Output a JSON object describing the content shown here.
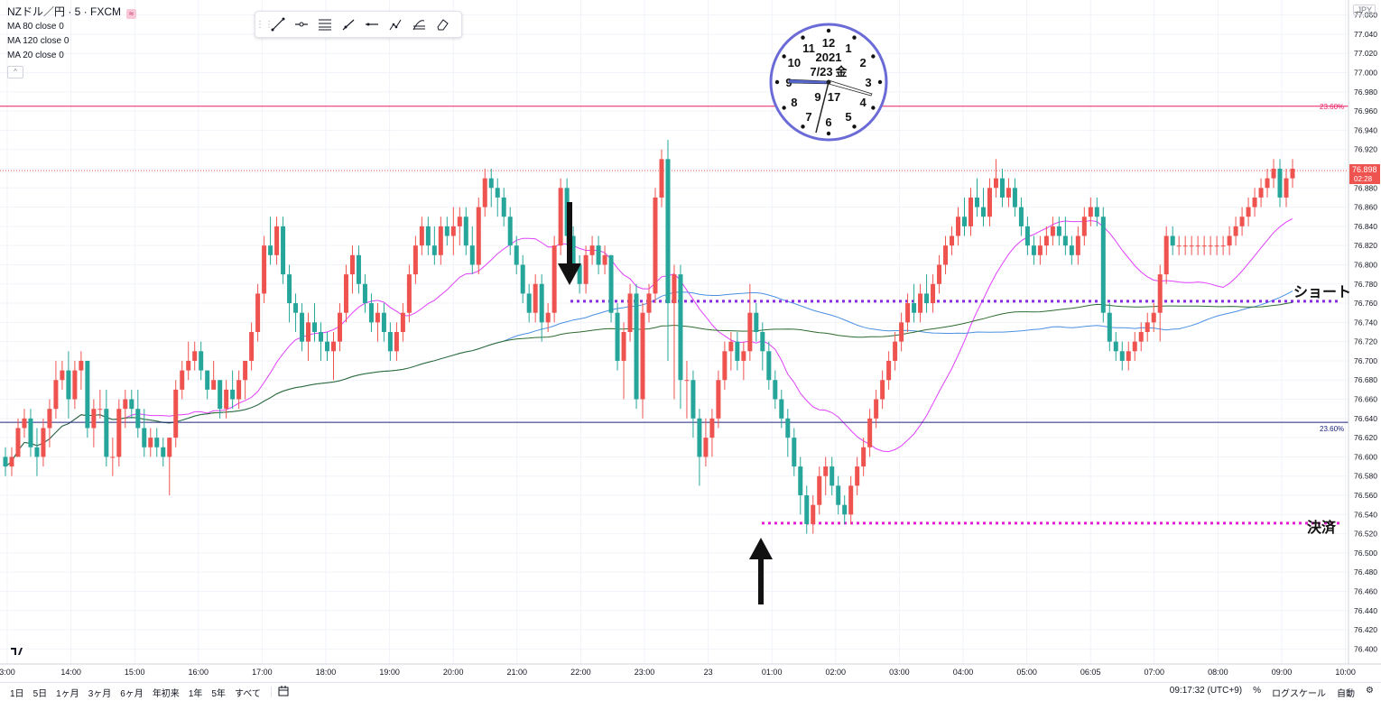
{
  "legend": {
    "title": "NZドル／円 · 5 · FXCM",
    "ma80": "MA 80 close 0",
    "ma120": "MA 120 close 0",
    "ma20": "MA 20 close 0",
    "chip": "≈"
  },
  "currency_button": "JPY",
  "price_badge": {
    "price": "76.898",
    "countdown": "02:28"
  },
  "fib_label": "23.60%",
  "annotations": {
    "short": "ショート",
    "close": "決済"
  },
  "clock": {
    "year": "2021",
    "date": "7/23",
    "weekday": "金",
    "hour_label": "9",
    "minute_label": "17",
    "numbers": [
      "12",
      "1",
      "2",
      "3",
      "4",
      "5",
      "6",
      "7",
      "8",
      "9",
      "10",
      "11"
    ]
  },
  "bottombar": {
    "ranges": [
      "1日",
      "5日",
      "1ヶ月",
      "3ヶ月",
      "6ヶ月",
      "年初来",
      "1年",
      "5年",
      "すべて"
    ],
    "time": "09:17:32 (UTC+9)",
    "percent": "%",
    "log": "ログスケール",
    "auto": "自動"
  },
  "colors": {
    "up": "#ef5350",
    "down": "#26a69a",
    "ma20": "#e040fb",
    "ma80": "#4a90e2",
    "ma120": "#2e6b2e",
    "fib_pink": "#e91e63",
    "fib_navy": "#1a237e",
    "dotted_purple": "#8a2be2",
    "dotted_magenta": "#e020d0",
    "clock_ring": "#6b6bd8"
  },
  "chart_data": {
    "type": "candlestick",
    "y_ticks": [
      "77.060",
      "77.040",
      "77.020",
      "77.000",
      "76.980",
      "76.960",
      "76.940",
      "76.920",
      "76.900",
      "76.880",
      "76.860",
      "76.840",
      "76.820",
      "76.800",
      "76.780",
      "76.760",
      "76.740",
      "76.720",
      "76.700",
      "76.680",
      "76.660",
      "76.640",
      "76.620",
      "76.600",
      "76.580",
      "76.560",
      "76.540",
      "76.520",
      "76.500",
      "76.480",
      "76.460",
      "76.440",
      "76.420",
      "76.400"
    ],
    "x_ticks": [
      "3:00",
      "14:00",
      "15:00",
      "16:00",
      "17:00",
      "18:00",
      "19:00",
      "20:00",
      "21:00",
      "22:00",
      "23:00",
      "23",
      "01:00",
      "02:00",
      "03:00",
      "04:00",
      "05:00",
      "06:05",
      "07:00",
      "08:00",
      "09:00",
      "10:00"
    ],
    "fib_levels": [
      76.965,
      76.636
    ],
    "short_level": 76.762,
    "close_level": 76.531,
    "current_price": 76.898,
    "candles": [
      [
        76.6,
        76.61,
        76.58,
        76.59
      ],
      [
        76.59,
        76.61,
        76.58,
        76.6
      ],
      [
        76.6,
        76.64,
        76.6,
        76.63
      ],
      [
        76.63,
        76.65,
        76.62,
        76.64
      ],
      [
        76.64,
        76.65,
        76.6,
        76.61
      ],
      [
        76.61,
        76.63,
        76.58,
        76.6
      ],
      [
        76.6,
        76.64,
        76.59,
        76.63
      ],
      [
        76.63,
        76.66,
        76.61,
        76.65
      ],
      [
        76.65,
        76.7,
        76.64,
        76.68
      ],
      [
        76.68,
        76.7,
        76.67,
        76.69
      ],
      [
        76.69,
        76.71,
        76.64,
        76.66
      ],
      [
        76.66,
        76.7,
        76.65,
        76.69
      ],
      [
        76.69,
        76.71,
        76.67,
        76.7
      ],
      [
        76.7,
        76.7,
        76.62,
        76.63
      ],
      [
        76.63,
        76.66,
        76.61,
        76.65
      ],
      [
        76.65,
        76.67,
        76.64,
        76.65
      ],
      [
        76.65,
        76.67,
        76.59,
        76.6
      ],
      [
        76.6,
        76.62,
        76.58,
        76.6
      ],
      [
        76.6,
        76.66,
        76.59,
        76.65
      ],
      [
        76.65,
        76.67,
        76.63,
        76.66
      ],
      [
        76.66,
        76.67,
        76.64,
        76.65
      ],
      [
        76.65,
        76.67,
        76.62,
        76.63
      ],
      [
        76.63,
        76.65,
        76.6,
        76.61
      ],
      [
        76.61,
        76.63,
        76.6,
        76.62
      ],
      [
        76.62,
        76.63,
        76.6,
        76.61
      ],
      [
        76.61,
        76.62,
        76.59,
        76.6
      ],
      [
        76.6,
        76.62,
        76.56,
        76.62
      ],
      [
        76.62,
        76.68,
        76.61,
        76.67
      ],
      [
        76.67,
        76.7,
        76.66,
        76.69
      ],
      [
        76.69,
        76.72,
        76.68,
        76.7
      ],
      [
        76.7,
        76.72,
        76.69,
        76.71
      ],
      [
        76.71,
        76.72,
        76.68,
        76.69
      ],
      [
        76.69,
        76.69,
        76.66,
        76.67
      ],
      [
        76.67,
        76.7,
        76.67,
        76.68
      ],
      [
        76.68,
        76.68,
        76.64,
        76.65
      ],
      [
        76.65,
        76.68,
        76.64,
        76.67
      ],
      [
        76.67,
        76.69,
        76.65,
        76.66
      ],
      [
        76.66,
        76.69,
        76.65,
        76.68
      ],
      [
        76.68,
        76.7,
        76.66,
        76.7
      ],
      [
        76.7,
        76.74,
        76.69,
        76.73
      ],
      [
        76.73,
        76.78,
        76.72,
        76.77
      ],
      [
        76.77,
        76.83,
        76.76,
        76.82
      ],
      [
        76.82,
        76.85,
        76.8,
        76.81
      ],
      [
        76.81,
        76.85,
        76.8,
        76.84
      ],
      [
        76.84,
        76.85,
        76.78,
        76.79
      ],
      [
        76.79,
        76.8,
        76.74,
        76.76
      ],
      [
        76.76,
        76.77,
        76.73,
        76.75
      ],
      [
        76.75,
        76.76,
        76.71,
        76.72
      ],
      [
        76.72,
        76.75,
        76.7,
        76.74
      ],
      [
        76.74,
        76.76,
        76.72,
        76.73
      ],
      [
        76.73,
        76.74,
        76.7,
        76.72
      ],
      [
        76.72,
        76.73,
        76.7,
        76.71
      ],
      [
        76.71,
        76.73,
        76.68,
        76.72
      ],
      [
        76.72,
        76.76,
        76.71,
        76.75
      ],
      [
        76.75,
        76.8,
        76.74,
        76.79
      ],
      [
        76.79,
        76.82,
        76.77,
        76.81
      ],
      [
        76.81,
        76.82,
        76.77,
        76.78
      ],
      [
        76.78,
        76.79,
        76.75,
        76.76
      ],
      [
        76.76,
        76.77,
        76.73,
        76.74
      ],
      [
        76.74,
        76.76,
        76.72,
        76.75
      ],
      [
        76.75,
        76.76,
        76.72,
        76.73
      ],
      [
        76.73,
        76.74,
        76.7,
        76.71
      ],
      [
        76.71,
        76.74,
        76.7,
        76.73
      ],
      [
        76.73,
        76.76,
        76.72,
        76.75
      ],
      [
        76.75,
        76.8,
        76.74,
        76.79
      ],
      [
        76.79,
        76.83,
        76.78,
        76.82
      ],
      [
        76.82,
        76.85,
        76.81,
        76.84
      ],
      [
        76.84,
        76.85,
        76.81,
        76.82
      ],
      [
        76.82,
        76.84,
        76.8,
        76.81
      ],
      [
        76.81,
        76.85,
        76.8,
        76.84
      ],
      [
        76.84,
        76.85,
        76.82,
        76.83
      ],
      [
        76.83,
        76.86,
        76.81,
        76.84
      ],
      [
        76.84,
        76.86,
        76.82,
        76.85
      ],
      [
        76.85,
        76.86,
        76.81,
        76.82
      ],
      [
        76.82,
        76.84,
        76.79,
        76.8
      ],
      [
        76.8,
        76.87,
        76.79,
        76.86
      ],
      [
        76.86,
        76.9,
        76.85,
        76.89
      ],
      [
        76.89,
        76.9,
        76.86,
        76.88
      ],
      [
        76.88,
        76.89,
        76.85,
        76.87
      ],
      [
        76.87,
        76.88,
        76.84,
        76.85
      ],
      [
        76.85,
        76.86,
        76.81,
        76.82
      ],
      [
        76.82,
        76.83,
        76.79,
        76.8
      ],
      [
        76.8,
        76.81,
        76.76,
        76.77
      ],
      [
        76.77,
        76.78,
        76.74,
        76.75
      ],
      [
        76.75,
        76.79,
        76.74,
        76.78
      ],
      [
        76.78,
        76.79,
        76.72,
        76.74
      ],
      [
        76.74,
        76.76,
        76.73,
        76.75
      ],
      [
        76.75,
        76.83,
        76.74,
        76.82
      ],
      [
        76.82,
        76.89,
        76.81,
        76.88
      ],
      [
        76.88,
        76.89,
        76.82,
        76.83
      ],
      [
        76.83,
        76.84,
        76.79,
        76.8
      ],
      [
        76.8,
        76.81,
        76.77,
        76.78
      ],
      [
        76.78,
        76.82,
        76.77,
        76.81
      ],
      [
        76.81,
        76.83,
        76.8,
        76.82
      ],
      [
        76.82,
        76.83,
        76.79,
        76.8
      ],
      [
        76.8,
        76.82,
        76.79,
        76.81
      ],
      [
        76.81,
        76.81,
        76.74,
        76.75
      ],
      [
        76.75,
        76.76,
        76.69,
        76.7
      ],
      [
        76.7,
        76.74,
        76.66,
        76.73
      ],
      [
        76.73,
        76.78,
        76.72,
        76.77
      ],
      [
        76.77,
        76.78,
        76.65,
        76.66
      ],
      [
        76.66,
        76.76,
        76.64,
        76.75
      ],
      [
        76.75,
        76.78,
        76.74,
        76.77
      ],
      [
        76.77,
        76.88,
        76.76,
        76.87
      ],
      [
        76.87,
        76.92,
        76.86,
        76.91
      ],
      [
        76.91,
        76.93,
        76.7,
        76.76
      ],
      [
        76.76,
        76.8,
        76.66,
        76.79
      ],
      [
        76.79,
        76.8,
        76.65,
        76.68
      ],
      [
        76.68,
        76.7,
        76.64,
        76.68
      ],
      [
        76.68,
        76.69,
        76.62,
        76.64
      ],
      [
        76.64,
        76.65,
        76.57,
        76.6
      ],
      [
        76.6,
        76.64,
        76.59,
        76.62
      ],
      [
        76.62,
        76.65,
        76.6,
        76.64
      ],
      [
        76.64,
        76.69,
        76.63,
        76.68
      ],
      [
        76.68,
        76.72,
        76.67,
        76.71
      ],
      [
        76.71,
        76.73,
        76.69,
        76.72
      ],
      [
        76.72,
        76.73,
        76.69,
        76.7
      ],
      [
        76.7,
        76.72,
        76.68,
        76.71
      ],
      [
        76.71,
        76.78,
        76.7,
        76.75
      ],
      [
        76.75,
        76.76,
        76.72,
        76.73
      ],
      [
        76.73,
        76.74,
        76.69,
        76.71
      ],
      [
        76.71,
        76.72,
        76.67,
        76.68
      ],
      [
        76.68,
        76.69,
        76.65,
        76.66
      ],
      [
        76.66,
        76.67,
        76.63,
        76.64
      ],
      [
        76.64,
        76.65,
        76.6,
        76.62
      ],
      [
        76.62,
        76.63,
        76.58,
        76.59
      ],
      [
        76.59,
        76.6,
        76.54,
        76.56
      ],
      [
        76.56,
        76.57,
        76.52,
        76.53
      ],
      [
        76.53,
        76.56,
        76.52,
        76.55
      ],
      [
        76.55,
        76.59,
        76.54,
        76.58
      ],
      [
        76.58,
        76.6,
        76.56,
        76.59
      ],
      [
        76.59,
        76.6,
        76.56,
        76.57
      ],
      [
        76.57,
        76.58,
        76.54,
        76.55
      ],
      [
        76.55,
        76.56,
        76.53,
        76.54
      ],
      [
        76.54,
        76.58,
        76.53,
        76.57
      ],
      [
        76.57,
        76.6,
        76.56,
        76.59
      ],
      [
        76.59,
        76.62,
        76.58,
        76.61
      ],
      [
        76.61,
        76.65,
        76.6,
        76.64
      ],
      [
        76.64,
        76.67,
        76.63,
        76.66
      ],
      [
        76.66,
        76.69,
        76.65,
        76.68
      ],
      [
        76.68,
        76.71,
        76.67,
        76.7
      ],
      [
        76.7,
        76.73,
        76.69,
        76.72
      ],
      [
        76.72,
        76.75,
        76.71,
        76.74
      ],
      [
        76.74,
        76.77,
        76.73,
        76.76
      ],
      [
        76.76,
        76.78,
        76.74,
        76.75
      ],
      [
        76.75,
        76.78,
        76.74,
        76.77
      ],
      [
        76.77,
        76.79,
        76.75,
        76.76
      ],
      [
        76.76,
        76.79,
        76.75,
        76.78
      ],
      [
        76.78,
        76.81,
        76.77,
        76.8
      ],
      [
        76.8,
        76.83,
        76.79,
        76.82
      ],
      [
        76.82,
        76.84,
        76.81,
        76.83
      ],
      [
        76.83,
        76.86,
        76.82,
        76.85
      ],
      [
        76.85,
        76.87,
        76.83,
        76.84
      ],
      [
        76.84,
        76.88,
        76.83,
        76.87
      ],
      [
        76.87,
        76.89,
        76.85,
        76.86
      ],
      [
        76.86,
        76.88,
        76.84,
        76.85
      ],
      [
        76.85,
        76.89,
        76.84,
        76.88
      ],
      [
        76.88,
        76.91,
        76.87,
        76.89
      ],
      [
        76.89,
        76.9,
        76.86,
        76.87
      ],
      [
        76.87,
        76.89,
        76.86,
        76.88
      ],
      [
        76.88,
        76.89,
        76.85,
        76.86
      ],
      [
        76.86,
        76.87,
        76.83,
        76.84
      ],
      [
        76.84,
        76.85,
        76.81,
        76.82
      ],
      [
        76.82,
        76.83,
        76.8,
        76.81
      ],
      [
        76.81,
        76.83,
        76.8,
        76.82
      ],
      [
        76.82,
        76.84,
        76.81,
        76.83
      ],
      [
        76.83,
        76.85,
        76.82,
        76.84
      ],
      [
        76.84,
        76.85,
        76.82,
        76.83
      ],
      [
        76.83,
        76.85,
        76.81,
        76.82
      ],
      [
        76.82,
        76.83,
        76.8,
        76.81
      ],
      [
        76.81,
        76.84,
        76.8,
        76.83
      ],
      [
        76.83,
        76.86,
        76.82,
        76.85
      ],
      [
        76.85,
        76.87,
        76.84,
        76.86
      ],
      [
        76.86,
        76.87,
        76.84,
        76.85
      ],
      [
        76.85,
        76.86,
        76.74,
        76.75
      ],
      [
        76.75,
        76.76,
        76.71,
        76.72
      ],
      [
        76.72,
        76.73,
        76.7,
        76.71
      ],
      [
        76.71,
        76.72,
        76.69,
        76.7
      ],
      [
        76.7,
        76.72,
        76.69,
        76.71
      ],
      [
        76.71,
        76.73,
        76.7,
        76.72
      ],
      [
        76.72,
        76.74,
        76.71,
        76.73
      ],
      [
        76.73,
        76.75,
        76.72,
        76.74
      ],
      [
        76.74,
        76.76,
        76.73,
        76.75
      ],
      [
        76.75,
        76.8,
        76.72,
        76.79
      ],
      [
        76.79,
        76.84,
        76.78,
        76.83
      ],
      [
        76.83,
        76.84,
        76.81,
        76.82
      ],
      [
        76.82,
        76.83,
        76.81,
        76.82
      ],
      [
        76.82,
        76.83,
        76.81,
        76.82
      ],
      [
        76.82,
        76.83,
        76.81,
        76.82
      ],
      [
        76.82,
        76.83,
        76.81,
        76.82
      ],
      [
        76.82,
        76.83,
        76.81,
        76.82
      ],
      [
        76.82,
        76.83,
        76.81,
        76.82
      ],
      [
        76.82,
        76.83,
        76.81,
        76.82
      ],
      [
        76.82,
        76.83,
        76.81,
        76.82
      ],
      [
        76.82,
        76.84,
        76.81,
        76.83
      ],
      [
        76.83,
        76.85,
        76.82,
        76.84
      ],
      [
        76.84,
        76.86,
        76.83,
        76.85
      ],
      [
        76.85,
        76.87,
        76.84,
        76.86
      ],
      [
        76.86,
        76.88,
        76.85,
        76.87
      ],
      [
        76.87,
        76.89,
        76.86,
        76.88
      ],
      [
        76.88,
        76.9,
        76.87,
        76.89
      ],
      [
        76.89,
        76.91,
        76.88,
        76.9
      ],
      [
        76.9,
        76.91,
        76.86,
        76.87
      ],
      [
        76.87,
        76.9,
        76.86,
        76.89
      ],
      [
        76.89,
        76.91,
        76.88,
        76.9
      ]
    ]
  }
}
